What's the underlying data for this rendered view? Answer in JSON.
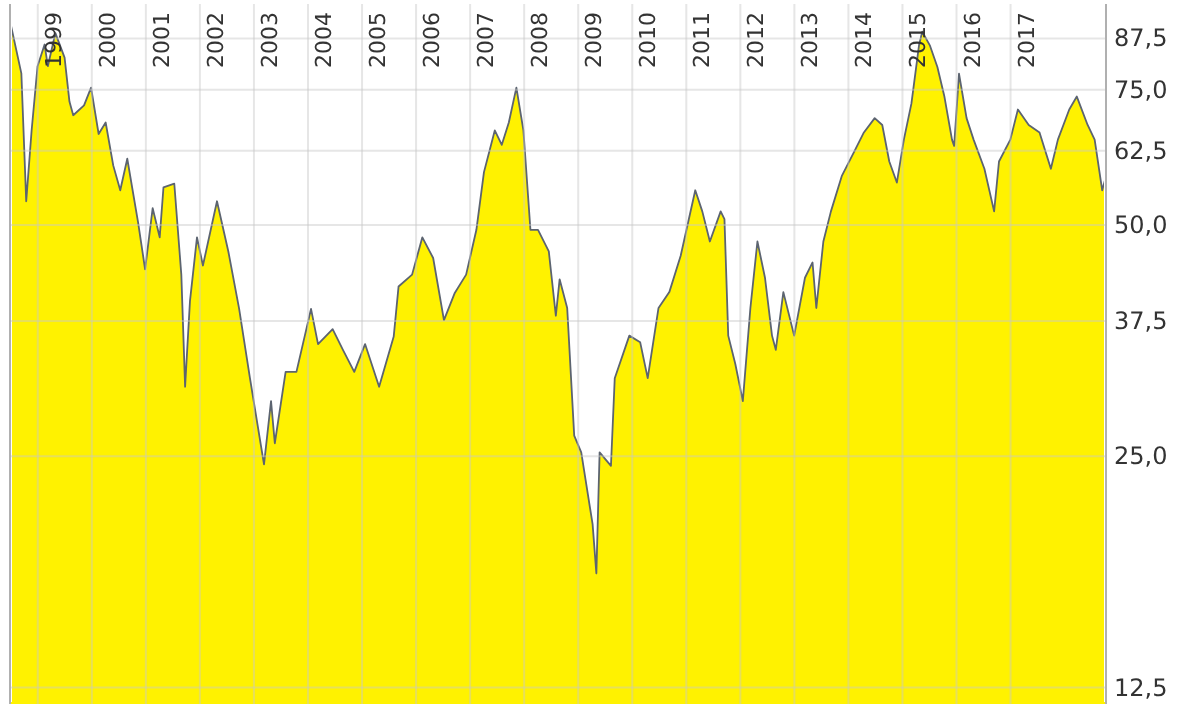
{
  "chart_data": {
    "type": "area",
    "log": "y",
    "grid": true,
    "xlim": [
      1998.19,
      2018.47
    ],
    "ylim": [
      11.9,
      97
    ],
    "xticks": [
      {
        "value": 1999,
        "label": "1999"
      },
      {
        "value": 2000,
        "label": "2000"
      },
      {
        "value": 2001,
        "label": "2001"
      },
      {
        "value": 2002,
        "label": "2002"
      },
      {
        "value": 2003,
        "label": "2003"
      },
      {
        "value": 2004,
        "label": "2004"
      },
      {
        "value": 2005,
        "label": "2005"
      },
      {
        "value": 2006,
        "label": "2006"
      },
      {
        "value": 2007,
        "label": "2007"
      },
      {
        "value": 2008,
        "label": "2008"
      },
      {
        "value": 2009,
        "label": "2009"
      },
      {
        "value": 2010,
        "label": "2010"
      },
      {
        "value": 2011,
        "label": "2011"
      },
      {
        "value": 2012,
        "label": "2012"
      },
      {
        "value": 2013,
        "label": "2013"
      },
      {
        "value": 2014,
        "label": "2014"
      },
      {
        "value": 2015,
        "label": "2015"
      },
      {
        "value": 2016,
        "label": "2016"
      },
      {
        "value": 2017,
        "label": "2017"
      }
    ],
    "yticks": [
      {
        "value": 12.5,
        "label": "12,5"
      },
      {
        "value": 25,
        "label": "25,0"
      },
      {
        "value": 37.5,
        "label": "37,5"
      },
      {
        "value": 50,
        "label": "50,0"
      },
      {
        "value": 62.5,
        "label": "62,5"
      },
      {
        "value": 75,
        "label": "75,0"
      },
      {
        "value": 87.5,
        "label": "87,5"
      }
    ],
    "x": [
      1998.19,
      1998.4,
      1998.49,
      1998.59,
      1998.7,
      1998.83,
      1998.89,
      1999.03,
      1999.2,
      1999.29,
      1999.36,
      1999.56,
      1999.69,
      1999.83,
      1999.96,
      2000.1,
      2000.23,
      2000.36,
      2000.56,
      2000.69,
      2000.83,
      2000.96,
      2001.03,
      2001.23,
      2001.36,
      2001.43,
      2001.52,
      2001.65,
      2001.76,
      2002.02,
      2002.23,
      2002.43,
      2002.63,
      2002.89,
      2003.02,
      2003.09,
      2003.29,
      2003.49,
      2003.76,
      2003.89,
      2004.16,
      2004.36,
      2004.56,
      2004.76,
      2005.02,
      2005.29,
      2005.38,
      2005.63,
      2005.82,
      2006.02,
      2006.22,
      2006.42,
      2006.63,
      2006.82,
      2006.96,
      2007.16,
      2007.29,
      2007.42,
      2007.56,
      2007.69,
      2007.82,
      2007.96,
      2008.16,
      2008.29,
      2008.36,
      2008.5,
      2008.63,
      2008.76,
      2008.97,
      2009.04,
      2009.1,
      2009.31,
      2009.38,
      2009.65,
      2009.85,
      2009.99,
      2010.19,
      2010.39,
      2010.6,
      2010.87,
      2011.0,
      2011.14,
      2011.34,
      2011.41,
      2011.48,
      2011.61,
      2011.75,
      2011.89,
      2012.02,
      2012.16,
      2012.29,
      2012.36,
      2012.5,
      2012.7,
      2012.9,
      2013.04,
      2013.11,
      2013.24,
      2013.38,
      2013.58,
      2013.79,
      2013.99,
      2014.19,
      2014.33,
      2014.46,
      2014.6,
      2014.73,
      2014.87,
      2015.01,
      2015.07,
      2015.21,
      2015.35,
      2015.48,
      2015.62,
      2015.66,
      2015.75,
      2015.89,
      2016.02,
      2016.22,
      2016.4,
      2016.49,
      2016.7,
      2016.84,
      2017.04,
      2017.24,
      2017.45,
      2017.58,
      2017.79,
      2017.93,
      2018.13,
      2018.26,
      2018.4,
      2018.47
    ],
    "series": [
      {
        "color": "#fff200",
        "values": [
          92.2,
          78.8,
          53.7,
          66.4,
          80.5,
          85.9,
          80.5,
          88.9,
          82.6,
          72.4,
          69.5,
          71.6,
          75.5,
          65.7,
          68.0,
          59.8,
          55.5,
          61.0,
          50.4,
          43.8,
          52.6,
          48.2,
          56.0,
          56.6,
          43.1,
          30.8,
          39.8,
          48.2,
          44.3,
          53.7,
          46.2,
          38.9,
          31.6,
          24.4,
          29.5,
          26.0,
          32.2,
          32.2,
          38.9,
          35.0,
          36.6,
          34.3,
          32.2,
          35.0,
          30.8,
          35.8,
          41.6,
          43.1,
          48.2,
          45.3,
          37.6,
          40.8,
          43.1,
          49.3,
          58.6,
          66.4,
          63.6,
          68.0,
          75.5,
          66.4,
          49.3,
          49.3,
          46.2,
          38.1,
          42.5,
          39.0,
          26.6,
          25.3,
          20.4,
          17.6,
          25.3,
          24.3,
          31.6,
          35.9,
          35.2,
          31.6,
          39.0,
          40.9,
          45.6,
          55.5,
          52.1,
          47.6,
          52.1,
          50.9,
          35.9,
          33.0,
          29.5,
          39.0,
          47.6,
          42.7,
          35.9,
          34.4,
          40.9,
          35.9,
          42.7,
          44.7,
          39.0,
          47.6,
          52.1,
          57.9,
          61.9,
          66.0,
          68.9,
          67.5,
          60.5,
          56.8,
          64.6,
          72.0,
          85.7,
          89.3,
          85.7,
          80.3,
          73.5,
          64.6,
          63.4,
          78.7,
          68.9,
          64.6,
          59.2,
          52.1,
          60.5,
          64.6,
          70.7,
          67.5,
          66.0,
          59.2,
          64.6,
          70.7,
          73.5,
          67.5,
          64.6,
          55.5,
          57.9
        ]
      }
    ]
  }
}
